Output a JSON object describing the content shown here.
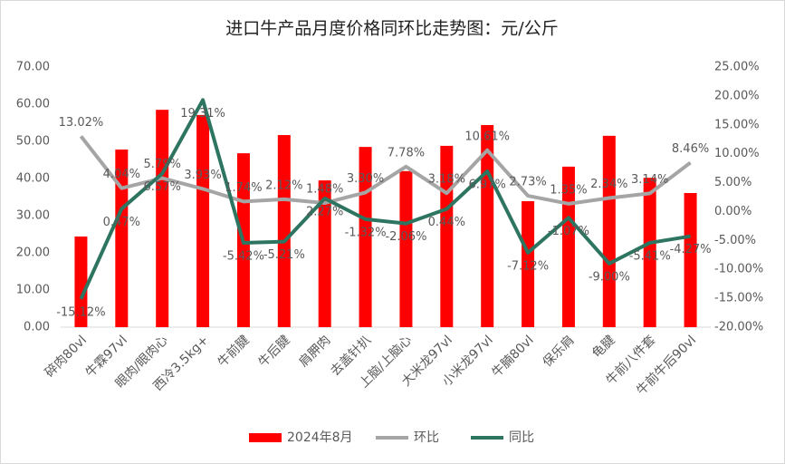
{
  "chart_data": {
    "type": "combo",
    "title": "进口牛产品月度价格同环比走势图：元/公斤",
    "categories": [
      "碎肉80vl",
      "牛霖97vl",
      "眼肉/眼肉心",
      "西冷3.5kg+",
      "牛前腱",
      "牛后腱",
      "肩胛肉",
      "去盖针扒",
      "上脑/上脑心",
      "大米龙97vl",
      "小米龙97vl",
      "牛腩80vl",
      "保乐肩",
      "龟腱",
      "牛前八件套",
      "牛前牛后90vl"
    ],
    "series": [
      {
        "name": "2024年8月",
        "type": "bar",
        "color": "#ff0000",
        "values": [
          24.4,
          47.8,
          58.5,
          57.1,
          46.8,
          51.7,
          39.5,
          48.5,
          42.0,
          48.8,
          54.4,
          33.9,
          43.2,
          51.5,
          40.2,
          36.1
        ]
      },
      {
        "name": "环比",
        "type": "line",
        "axis": "y2",
        "color": "#a5a5a5",
        "label_side": "above",
        "values": [
          13.02,
          4.04,
          5.79,
          3.93,
          1.74,
          2.12,
          1.48,
          3.3,
          7.78,
          3.18,
          10.61,
          2.73,
          1.35,
          2.34,
          3.14,
          8.46
        ],
        "value_labels": [
          "13.02%",
          "4.04%",
          "5.79%",
          "3.93%",
          "1.74%",
          "2.12%",
          "1.48%",
          "3.30%",
          "7.78%",
          "3.18%",
          "10.61%",
          "2.73%",
          "1.35%",
          "2.34%",
          "3.14%",
          "8.46%"
        ]
      },
      {
        "name": "同比",
        "type": "line",
        "axis": "y2",
        "color": "#2e7561",
        "label_side": "below",
        "values": [
          -15.12,
          0.47,
          6.57,
          19.31,
          -5.42,
          -5.21,
          2.27,
          -1.32,
          -2.06,
          0.44,
          6.97,
          -7.12,
          -1.07,
          -9.0,
          -5.41,
          -4.27
        ],
        "value_labels": [
          "-15.12%",
          "0.47%",
          "6.57%",
          "19.31%",
          "-5.42%",
          "-5.21%",
          "2.27%",
          "-1.32%",
          "-2.06%",
          "0.44%",
          "6.97%",
          "-7.12%",
          "-1.07%",
          "-9.00%",
          "-5.41%",
          "-4.27%"
        ]
      }
    ],
    "ylim": [
      0,
      70
    ],
    "yticks": [
      {
        "value": 0,
        "label": "0.00"
      },
      {
        "value": 10,
        "label": "10.00"
      },
      {
        "value": 20,
        "label": "20.00"
      },
      {
        "value": 30,
        "label": "30.00"
      },
      {
        "value": 40,
        "label": "40.00"
      },
      {
        "value": 50,
        "label": "50.00"
      },
      {
        "value": 60,
        "label": "60.00"
      },
      {
        "value": 70,
        "label": "70.00"
      }
    ],
    "y2lim": [
      -20,
      25
    ],
    "y2ticks": [
      {
        "value": -20,
        "label": "-20.00%"
      },
      {
        "value": -15,
        "label": "-15.00%"
      },
      {
        "value": -10,
        "label": "-10.00%"
      },
      {
        "value": -5,
        "label": "-5.00%"
      },
      {
        "value": 0,
        "label": "0.00%"
      },
      {
        "value": 5,
        "label": "5.00%"
      },
      {
        "value": 10,
        "label": "10.00%"
      },
      {
        "value": 15,
        "label": "15.00%"
      },
      {
        "value": 20,
        "label": "20.00%"
      },
      {
        "value": 25,
        "label": "25.00%"
      }
    ],
    "grid": false,
    "legend": "bottom"
  }
}
